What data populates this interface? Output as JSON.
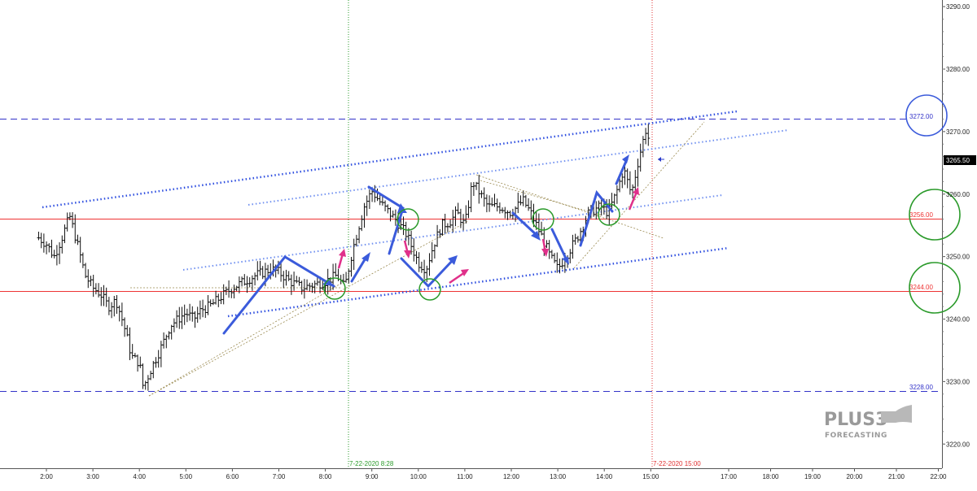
{
  "chart_data": {
    "type": "bar",
    "subtype": "ohlc",
    "x_ticks": [
      "2:00",
      "3:00",
      "4:00",
      "5:00",
      "6:00",
      "7:00",
      "8:00",
      "9:00",
      "10:00",
      "11:00",
      "12:00",
      "13:00",
      "14:00",
      "15:00",
      "17:00",
      "18:00",
      "19:00",
      "20:00",
      "21:00",
      "22:00"
    ],
    "y_ticks": [
      3220,
      3230,
      3240,
      3250,
      3260,
      3270,
      3280,
      3290
    ],
    "ylim": [
      3217,
      3291
    ],
    "grid": false,
    "levels": [
      {
        "label": "3272.00",
        "value": 3272,
        "style": "dashed",
        "color": "#3232c8"
      },
      {
        "label": "3256.00",
        "value": 3256,
        "style": "solid",
        "color": "#ee3333"
      },
      {
        "label": "3244.00",
        "value": 3244,
        "style": "solid",
        "color": "#ee3333"
      },
      {
        "label": "3228.00",
        "value": 3228,
        "style": "dashed",
        "color": "#3232c8"
      }
    ],
    "last_price": {
      "label": "3265.50",
      "value": 3265.5
    },
    "annotations": [
      {
        "label": "7-22-2020 8:28",
        "time": "8:28",
        "color": "#2a9a2a"
      },
      {
        "label": "7-22-2020 15:00",
        "time": "15:00",
        "color": "#e03030"
      }
    ],
    "close_path": [
      [
        "1:50",
        3253
      ],
      [
        "2:00",
        3252
      ],
      [
        "2:10",
        3250
      ],
      [
        "2:20",
        3253
      ],
      [
        "2:30",
        3256.5
      ],
      [
        "2:40",
        3252
      ],
      [
        "2:50",
        3247
      ],
      [
        "3:00",
        3245
      ],
      [
        "3:10",
        3244
      ],
      [
        "3:20",
        3242
      ],
      [
        "3:30",
        3243
      ],
      [
        "3:40",
        3239
      ],
      [
        "3:50",
        3234
      ],
      [
        "4:00",
        3233
      ],
      [
        "4:05",
        3229
      ],
      [
        "4:15",
        3232
      ],
      [
        "4:30",
        3236
      ],
      [
        "4:40",
        3239
      ],
      [
        "4:50",
        3240
      ],
      [
        "5:00",
        3241
      ],
      [
        "5:10",
        3240
      ],
      [
        "5:20",
        3241.5
      ],
      [
        "5:30",
        3242
      ],
      [
        "5:40",
        3243
      ],
      [
        "6:00",
        3245
      ],
      [
        "6:15",
        3246
      ],
      [
        "6:30",
        3247
      ],
      [
        "6:50",
        3248
      ],
      [
        "7:00",
        3247.5
      ],
      [
        "7:15",
        3246
      ],
      [
        "7:30",
        3245
      ],
      [
        "7:45",
        3245.5
      ],
      [
        "8:00",
        3246
      ],
      [
        "8:15",
        3247
      ],
      [
        "8:25",
        3245
      ],
      [
        "8:35",
        3251
      ],
      [
        "8:50",
        3258
      ],
      [
        "9:00",
        3260.5
      ],
      [
        "9:15",
        3258
      ],
      [
        "9:30",
        3256
      ],
      [
        "9:45",
        3253.5
      ],
      [
        "10:00",
        3249
      ],
      [
        "10:10",
        3248
      ],
      [
        "10:20",
        3252
      ],
      [
        "10:30",
        3255
      ],
      [
        "10:40",
        3255.5
      ],
      [
        "10:50",
        3257
      ],
      [
        "11:00",
        3255
      ],
      [
        "11:10",
        3262
      ],
      [
        "11:20",
        3260
      ],
      [
        "11:30",
        3258
      ],
      [
        "11:45",
        3258
      ],
      [
        "12:00",
        3257
      ],
      [
        "12:15",
        3259
      ],
      [
        "12:25",
        3257
      ],
      [
        "12:40",
        3253
      ],
      [
        "12:50",
        3250
      ],
      [
        "13:00",
        3248
      ],
      [
        "13:10",
        3250
      ],
      [
        "13:25",
        3253
      ],
      [
        "13:40",
        3257
      ],
      [
        "13:55",
        3258
      ],
      [
        "14:05",
        3257
      ],
      [
        "14:15",
        3260
      ],
      [
        "14:25",
        3264
      ],
      [
        "14:35",
        3260
      ],
      [
        "14:45",
        3266
      ],
      [
        "14:55",
        3271
      ],
      [
        "15:00",
        3265.5
      ]
    ]
  },
  "logo": {
    "main": "PLUS3",
    "sub": "FORECASTING"
  }
}
